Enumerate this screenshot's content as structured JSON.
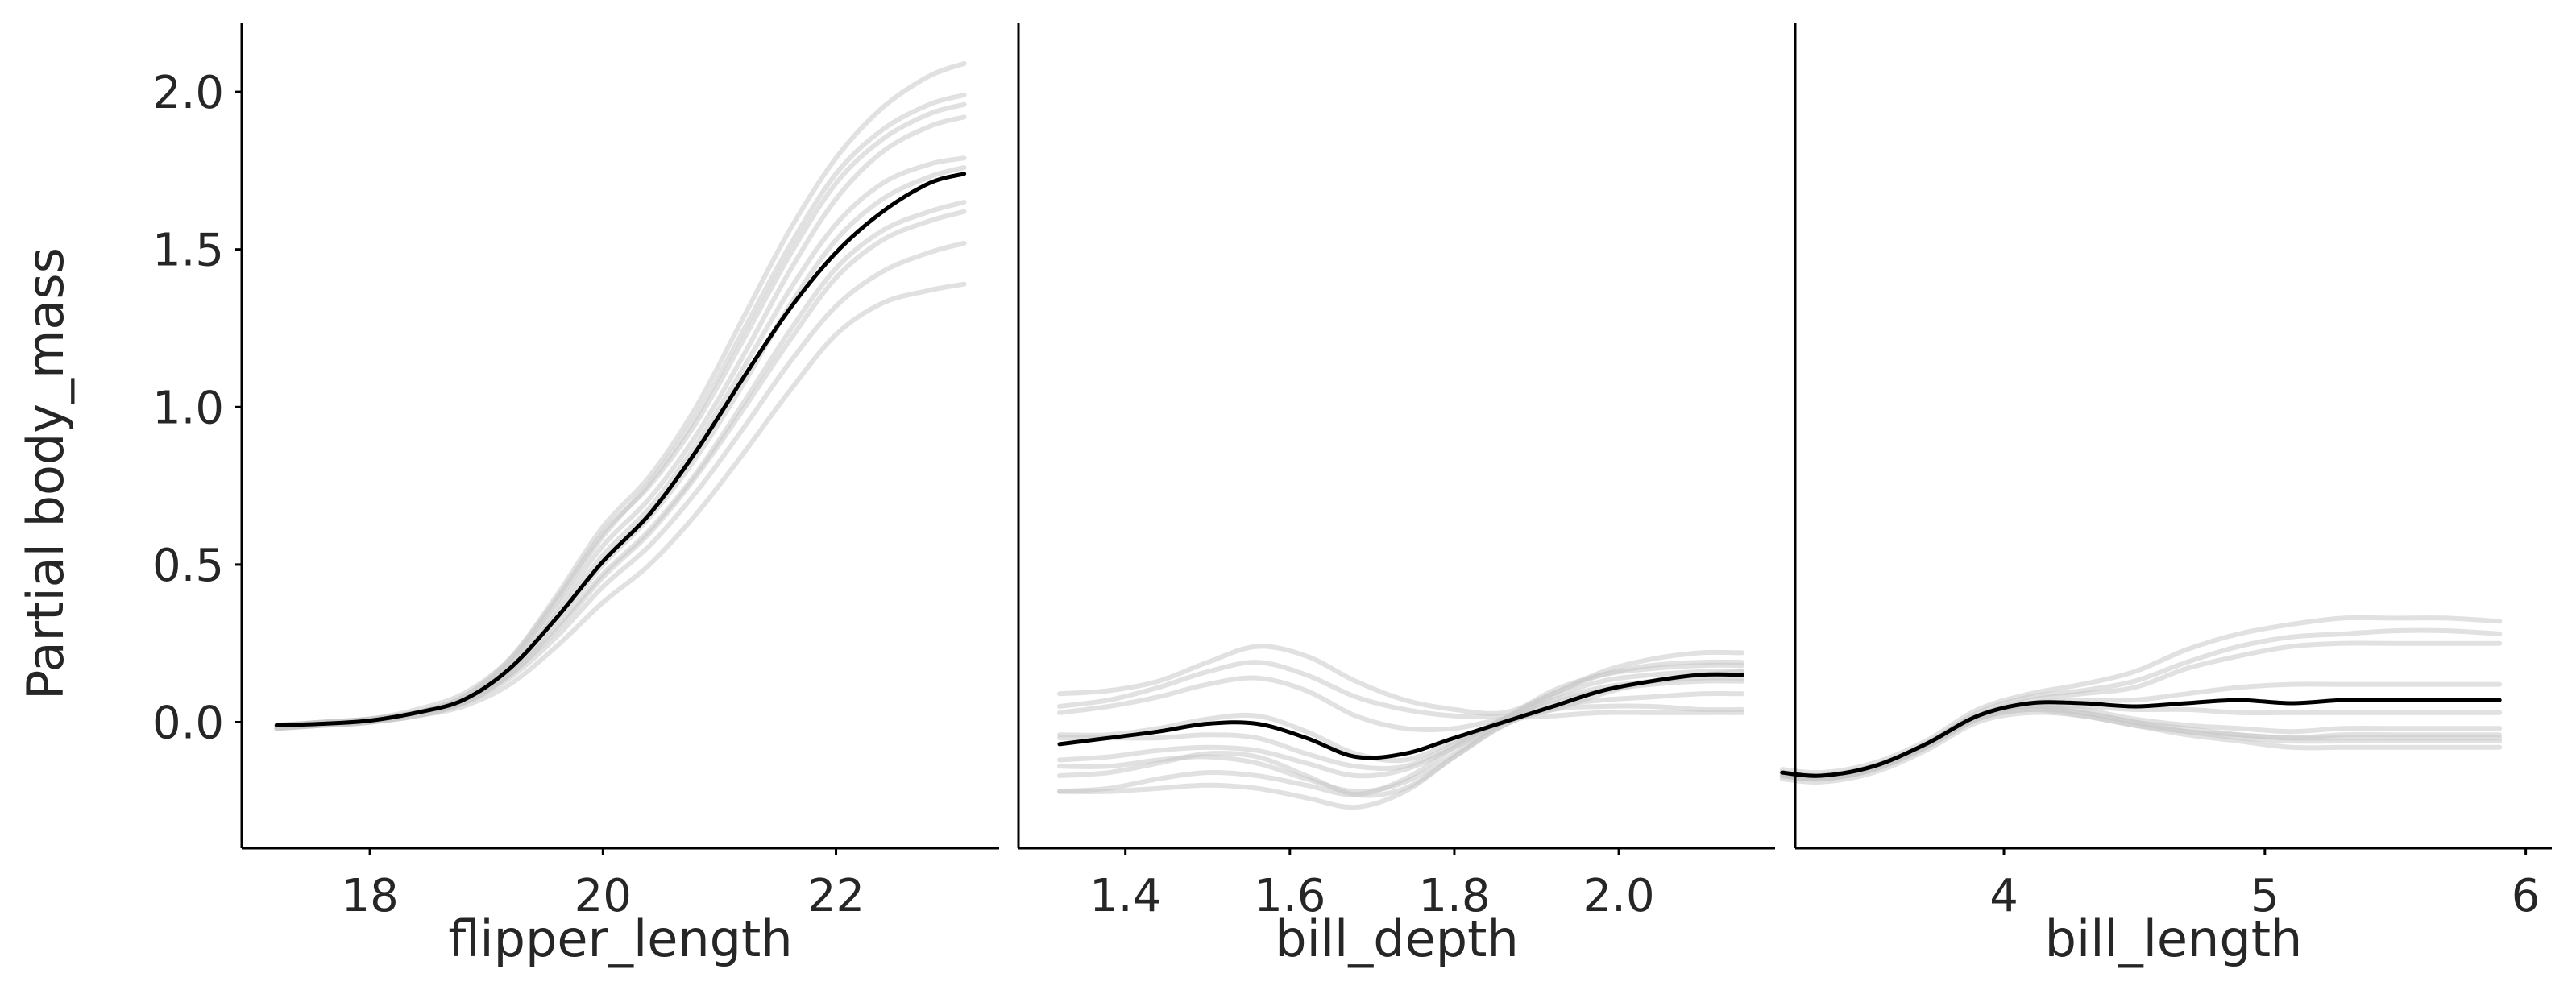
{
  "chart_data": [
    {
      "type": "line",
      "xlabel": "flipper_length",
      "ylabel": "Partial body_mass",
      "xlim": [
        16.9,
        23.4
      ],
      "ylim": [
        -0.4,
        2.22
      ],
      "xticks": [
        18,
        20,
        22
      ],
      "xtick_labels": [
        "18",
        "20",
        "22"
      ],
      "yticks": [
        0.0,
        0.5,
        1.0,
        1.5,
        2.0
      ],
      "ytick_labels": [
        "0.0",
        "0.5",
        "1.0",
        "1.5",
        "2.0"
      ],
      "grid": false,
      "x": [
        17.2,
        17.6,
        18.0,
        18.4,
        18.8,
        19.2,
        19.6,
        20.0,
        20.4,
        20.8,
        21.2,
        21.6,
        22.0,
        22.4,
        22.8,
        23.1
      ],
      "mean": [
        -0.01,
        -0.005,
        0.005,
        0.03,
        0.07,
        0.17,
        0.33,
        0.51,
        0.66,
        0.86,
        1.09,
        1.31,
        1.49,
        1.62,
        1.71,
        1.74
      ],
      "samples": [
        [
          -0.02,
          -0.01,
          0.0,
          0.03,
          0.08,
          0.2,
          0.4,
          0.62,
          0.78,
          1.0,
          1.28,
          1.56,
          1.79,
          1.95,
          2.05,
          2.09
        ],
        [
          -0.01,
          0.0,
          0.01,
          0.03,
          0.08,
          0.19,
          0.38,
          0.59,
          0.76,
          0.97,
          1.24,
          1.51,
          1.74,
          1.88,
          1.96,
          1.99
        ],
        [
          -0.01,
          0.0,
          0.01,
          0.04,
          0.09,
          0.2,
          0.39,
          0.6,
          0.75,
          0.95,
          1.21,
          1.48,
          1.71,
          1.85,
          1.93,
          1.96
        ],
        [
          -0.02,
          -0.01,
          0.0,
          0.03,
          0.07,
          0.18,
          0.36,
          0.56,
          0.71,
          0.91,
          1.16,
          1.43,
          1.66,
          1.81,
          1.89,
          1.92
        ],
        [
          -0.01,
          0.0,
          0.01,
          0.03,
          0.07,
          0.17,
          0.34,
          0.53,
          0.68,
          0.88,
          1.12,
          1.37,
          1.58,
          1.71,
          1.77,
          1.79
        ],
        [
          -0.01,
          -0.01,
          0.0,
          0.03,
          0.07,
          0.16,
          0.32,
          0.5,
          0.65,
          0.84,
          1.07,
          1.32,
          1.53,
          1.66,
          1.73,
          1.76
        ],
        [
          -0.02,
          -0.01,
          0.0,
          0.02,
          0.06,
          0.15,
          0.3,
          0.47,
          0.61,
          0.79,
          1.01,
          1.24,
          1.44,
          1.56,
          1.62,
          1.65
        ],
        [
          -0.01,
          -0.01,
          0.0,
          0.02,
          0.06,
          0.15,
          0.29,
          0.46,
          0.6,
          0.78,
          0.99,
          1.21,
          1.41,
          1.53,
          1.59,
          1.62
        ],
        [
          -0.01,
          0.0,
          0.01,
          0.03,
          0.06,
          0.14,
          0.27,
          0.43,
          0.56,
          0.73,
          0.93,
          1.14,
          1.32,
          1.43,
          1.49,
          1.52
        ],
        [
          -0.02,
          -0.01,
          0.0,
          0.02,
          0.05,
          0.12,
          0.24,
          0.38,
          0.5,
          0.66,
          0.85,
          1.05,
          1.23,
          1.33,
          1.37,
          1.39
        ]
      ]
    },
    {
      "type": "line",
      "xlabel": "bill_depth",
      "xlim": [
        1.27,
        2.19
      ],
      "ylim": [
        -0.4,
        2.22
      ],
      "xticks": [
        1.4,
        1.6,
        1.8,
        2.0
      ],
      "xtick_labels": [
        "1.4",
        "1.6",
        "1.8",
        "2.0"
      ],
      "grid": false,
      "x": [
        1.32,
        1.38,
        1.44,
        1.5,
        1.56,
        1.62,
        1.68,
        1.74,
        1.8,
        1.86,
        1.92,
        1.98,
        2.04,
        2.1,
        2.15
      ],
      "mean": [
        -0.07,
        -0.05,
        -0.03,
        -0.005,
        -0.005,
        -0.05,
        -0.11,
        -0.1,
        -0.05,
        0.0,
        0.05,
        0.1,
        0.13,
        0.15,
        0.15
      ],
      "samples": [
        [
          0.09,
          0.1,
          0.13,
          0.19,
          0.24,
          0.21,
          0.13,
          0.07,
          0.04,
          0.03,
          0.09,
          0.16,
          0.2,
          0.22,
          0.22
        ],
        [
          0.05,
          0.07,
          0.11,
          0.16,
          0.19,
          0.15,
          0.08,
          0.04,
          0.02,
          0.02,
          0.04,
          0.09,
          0.13,
          0.15,
          0.16
        ],
        [
          0.03,
          0.05,
          0.08,
          0.12,
          0.14,
          0.1,
          0.02,
          -0.02,
          -0.02,
          0.01,
          0.02,
          0.03,
          0.03,
          0.03,
          0.03
        ],
        [
          -0.04,
          -0.04,
          -0.02,
          0.01,
          0.02,
          -0.03,
          -0.1,
          -0.12,
          -0.06,
          0.01,
          0.09,
          0.15,
          0.18,
          0.19,
          0.19
        ],
        [
          -0.05,
          -0.05,
          -0.05,
          -0.04,
          -0.05,
          -0.1,
          -0.14,
          -0.14,
          -0.07,
          0.01,
          0.1,
          0.15,
          0.17,
          0.18,
          0.18
        ],
        [
          -0.12,
          -0.11,
          -0.09,
          -0.08,
          -0.09,
          -0.13,
          -0.17,
          -0.15,
          -0.08,
          0.0,
          0.08,
          0.13,
          0.15,
          0.16,
          0.16
        ],
        [
          -0.14,
          -0.14,
          -0.12,
          -0.11,
          -0.13,
          -0.18,
          -0.22,
          -0.19,
          -0.1,
          0.0,
          0.06,
          0.1,
          0.12,
          0.13,
          0.13
        ],
        [
          -0.22,
          -0.21,
          -0.18,
          -0.16,
          -0.17,
          -0.2,
          -0.23,
          -0.18,
          -0.08,
          0.01,
          0.07,
          0.11,
          0.13,
          0.14,
          0.14
        ],
        [
          -0.22,
          -0.22,
          -0.21,
          -0.2,
          -0.21,
          -0.24,
          -0.27,
          -0.22,
          -0.11,
          -0.01,
          0.04,
          0.05,
          0.05,
          0.04,
          0.04
        ],
        [
          -0.17,
          -0.16,
          -0.13,
          -0.1,
          -0.11,
          -0.17,
          -0.23,
          -0.21,
          -0.11,
          -0.01,
          0.05,
          0.07,
          0.08,
          0.09,
          0.09
        ]
      ]
    },
    {
      "type": "line",
      "xlabel": "bill_length",
      "xlim": [
        3.2,
        6.1
      ],
      "ylim": [
        -0.4,
        2.22
      ],
      "xticks": [
        4,
        5,
        6
      ],
      "xtick_labels": [
        "4",
        "5",
        "6"
      ],
      "grid": false,
      "x": [
        3.15,
        3.3,
        3.5,
        3.7,
        3.9,
        4.1,
        4.3,
        4.5,
        4.7,
        4.9,
        5.1,
        5.3,
        5.5,
        5.7,
        5.9
      ],
      "mean": [
        -0.16,
        -0.17,
        -0.14,
        -0.07,
        0.02,
        0.06,
        0.06,
        0.05,
        0.06,
        0.07,
        0.06,
        0.07,
        0.07,
        0.07,
        0.07
      ],
      "samples": [
        [
          -0.15,
          -0.16,
          -0.13,
          -0.06,
          0.04,
          0.09,
          0.12,
          0.16,
          0.23,
          0.28,
          0.31,
          0.33,
          0.33,
          0.33,
          0.32
        ],
        [
          -0.16,
          -0.17,
          -0.14,
          -0.07,
          0.03,
          0.08,
          0.1,
          0.13,
          0.19,
          0.24,
          0.27,
          0.28,
          0.29,
          0.29,
          0.28
        ],
        [
          -0.17,
          -0.18,
          -0.15,
          -0.08,
          0.02,
          0.07,
          0.09,
          0.11,
          0.17,
          0.21,
          0.24,
          0.25,
          0.25,
          0.25,
          0.25
        ],
        [
          -0.16,
          -0.17,
          -0.14,
          -0.07,
          0.02,
          0.06,
          0.07,
          0.07,
          0.09,
          0.11,
          0.12,
          0.12,
          0.12,
          0.12,
          0.12
        ],
        [
          -0.17,
          -0.18,
          -0.15,
          -0.08,
          0.01,
          0.05,
          0.05,
          0.04,
          0.04,
          0.03,
          0.03,
          0.03,
          0.03,
          0.03,
          0.03
        ],
        [
          -0.16,
          -0.17,
          -0.14,
          -0.07,
          0.02,
          0.05,
          0.04,
          0.01,
          -0.01,
          -0.02,
          -0.03,
          -0.02,
          -0.02,
          -0.02,
          -0.02
        ],
        [
          -0.17,
          -0.18,
          -0.15,
          -0.08,
          0.01,
          0.04,
          0.03,
          0.0,
          -0.02,
          -0.04,
          -0.05,
          -0.04,
          -0.04,
          -0.04,
          -0.04
        ],
        [
          -0.18,
          -0.19,
          -0.16,
          -0.09,
          0.0,
          0.03,
          0.02,
          -0.01,
          -0.03,
          -0.05,
          -0.06,
          -0.06,
          -0.06,
          -0.06,
          -0.06
        ],
        [
          -0.17,
          -0.18,
          -0.15,
          -0.08,
          0.01,
          0.04,
          0.02,
          -0.01,
          -0.04,
          -0.06,
          -0.08,
          -0.08,
          -0.08,
          -0.08,
          -0.08
        ],
        [
          -0.16,
          -0.17,
          -0.14,
          -0.07,
          0.02,
          0.05,
          0.03,
          0.0,
          -0.03,
          -0.04,
          -0.05,
          -0.05,
          -0.05,
          -0.05,
          -0.05
        ]
      ]
    }
  ]
}
